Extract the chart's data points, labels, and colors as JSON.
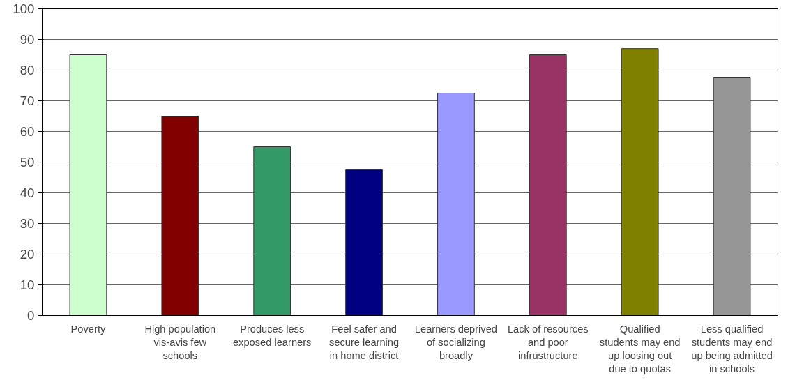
{
  "chart_data": {
    "type": "bar",
    "categories": [
      "Poverty",
      "High population vis-avis few schools",
      "Produces less exposed learners",
      "Feel safer and secure learning in home district",
      "Learners deprived of socializing broadly",
      "Lack of resources and poor infrustructure",
      "Qualified students may end up loosing out due to quotas",
      "Less qualified students may end up being admitted in schools"
    ],
    "values": [
      85,
      65,
      55,
      47.5,
      72.5,
      85,
      87,
      77.5
    ],
    "colors": [
      "#ccffcc",
      "#800000",
      "#339966",
      "#000080",
      "#9999ff",
      "#993366",
      "#808000",
      "#969696"
    ],
    "ylim": [
      0,
      100
    ],
    "yticks": [
      0,
      10,
      20,
      30,
      40,
      50,
      60,
      70,
      80,
      90,
      100
    ],
    "grid": "y"
  }
}
